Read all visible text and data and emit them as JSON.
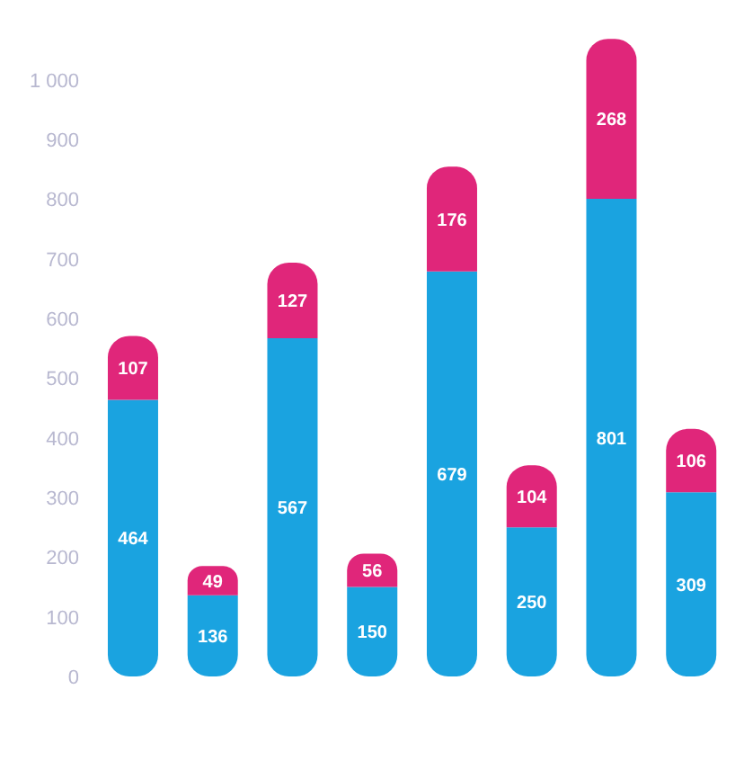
{
  "chart_data": {
    "type": "bar",
    "stacked": true,
    "categories": [
      null,
      null,
      null,
      null,
      null,
      null,
      null,
      null
    ],
    "series": [
      {
        "color": "#1aa3e0",
        "values": [
          464,
          136,
          567,
          150,
          679,
          250,
          801,
          309
        ]
      },
      {
        "color": "#e0267a",
        "values": [
          107,
          49,
          127,
          56,
          176,
          104,
          268,
          106
        ]
      }
    ],
    "ylim": [
      0,
      1080
    ],
    "yticks": [
      0,
      100,
      200,
      300,
      400,
      500,
      600,
      700,
      800,
      900,
      {
        "value": 1000,
        "label": "1 000"
      }
    ],
    "data_labels": true,
    "grid": false,
    "legend": false
  }
}
